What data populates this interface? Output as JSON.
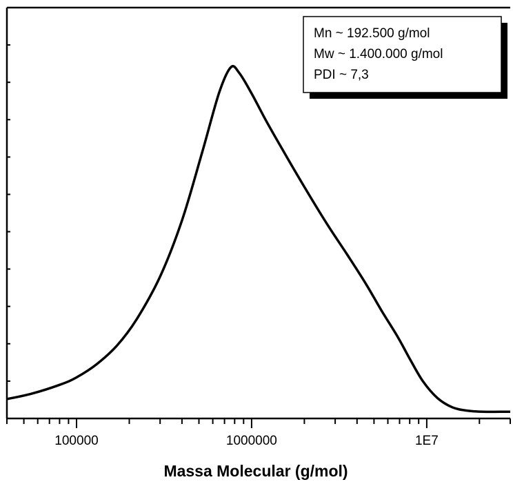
{
  "chart_data": {
    "type": "line",
    "title": "",
    "xlabel": "Massa Molecular (g/mol)",
    "ylabel": "",
    "x_scale": "log",
    "xlim": [
      40000,
      30000000
    ],
    "ylim": [
      0,
      1.1
    ],
    "x_ticks": [
      {
        "value": 100000,
        "label": "100000"
      },
      {
        "value": 1000000,
        "label": "1000000"
      },
      {
        "value": 10000000,
        "label": "1E7"
      }
    ],
    "grid": false,
    "series": [
      {
        "x": [
          40000,
          55000,
          80000,
          100000,
          130000,
          170000,
          220000,
          300000,
          400000,
          520000,
          650000,
          760000,
          850000,
          1000000,
          1200000,
          1500000,
          2000000,
          2700000,
          3500000,
          4500000,
          5500000,
          6800000,
          8000000,
          9500000,
          11500000,
          14000000,
          17000000,
          21000000,
          26000000,
          30000000
        ],
        "y": [
          0.052,
          0.066,
          0.09,
          0.11,
          0.145,
          0.195,
          0.265,
          0.38,
          0.53,
          0.71,
          0.87,
          0.94,
          0.925,
          0.87,
          0.8,
          0.72,
          0.62,
          0.52,
          0.44,
          0.36,
          0.29,
          0.22,
          0.16,
          0.1,
          0.055,
          0.03,
          0.021,
          0.018,
          0.018,
          0.018
        ]
      }
    ],
    "annotation": {
      "position": "top-right",
      "lines": [
        "Mn ~ 192.500 g/mol",
        "Mw ~ 1.400.000 g/mol",
        "PDI ~ 7,3"
      ]
    }
  }
}
